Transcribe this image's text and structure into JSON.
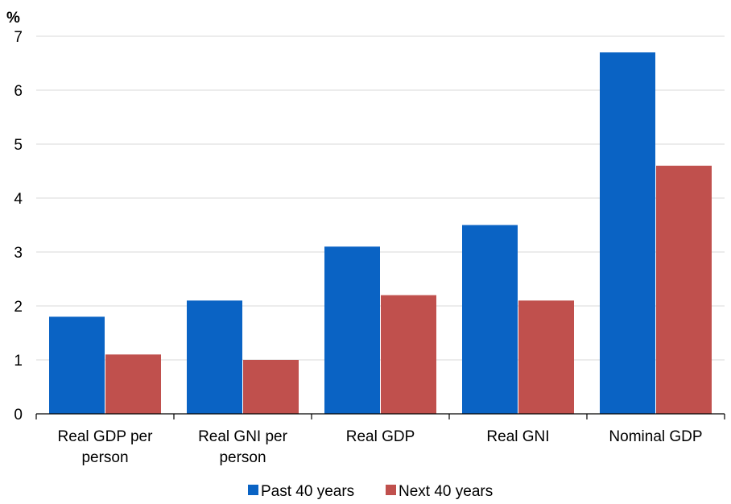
{
  "chart_data": {
    "type": "bar",
    "ylabel": "%",
    "ylim": [
      0,
      7
    ],
    "yticks": [
      "0",
      "1",
      "2",
      "3",
      "4",
      "5",
      "6",
      "7"
    ],
    "categories": [
      [
        "Real GDP per",
        "person"
      ],
      [
        "Real GNI per",
        "person"
      ],
      [
        "Real GDP"
      ],
      [
        "Real GNI"
      ],
      [
        "Nominal GDP"
      ]
    ],
    "series": [
      {
        "name": "Past 40 years",
        "color": "#0a63c4",
        "values": [
          1.8,
          2.1,
          3.1,
          3.5,
          6.7
        ]
      },
      {
        "name": "Next 40 years",
        "color": "#c0504d",
        "values": [
          1.1,
          1.0,
          2.2,
          2.1,
          4.6
        ]
      }
    ],
    "grid": true,
    "legend": "bottom-center"
  }
}
